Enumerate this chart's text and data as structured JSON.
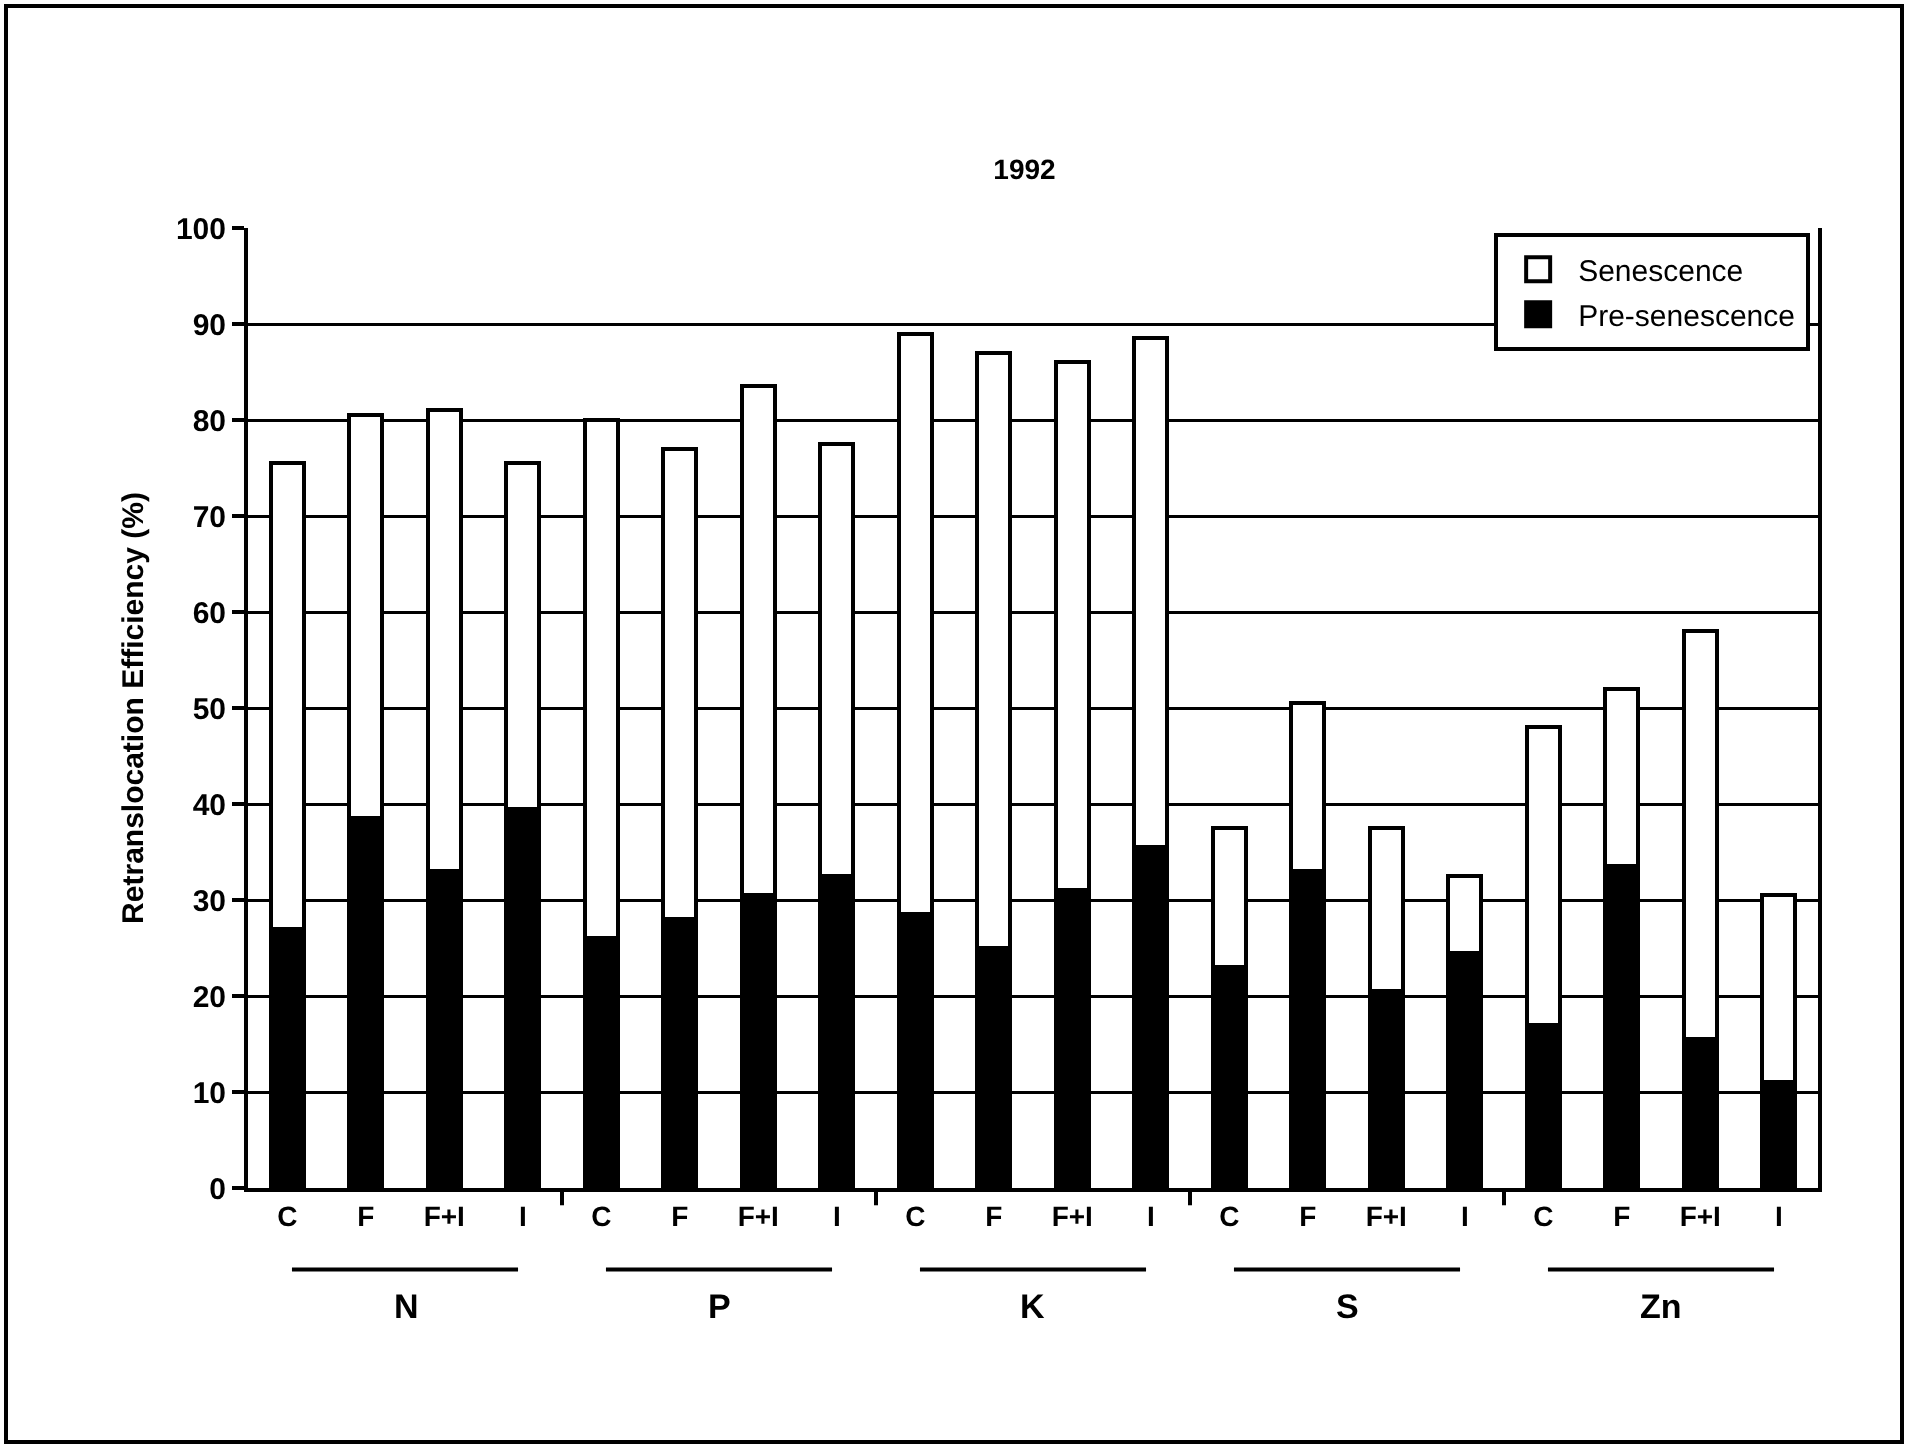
{
  "chart_data": {
    "type": "bar",
    "title": "1992",
    "ylabel": "Retranslocation Efficiency (%)",
    "categories": [
      "C",
      "F",
      "F+I",
      "I",
      "C",
      "F",
      "F+I",
      "I",
      "C",
      "F",
      "F+I",
      "I",
      "C",
      "F",
      "F+I",
      "I",
      "C",
      "F",
      "F+I",
      "I"
    ],
    "stacked": true,
    "series": [
      {
        "name": "Pre-senescence",
        "color": "#000000",
        "values": [
          27,
          38.5,
          33,
          39.5,
          26,
          28,
          30.5,
          32.5,
          28.5,
          25,
          31,
          35.5,
          23,
          33,
          20.5,
          24.5,
          17,
          33.5,
          15.5,
          11
        ]
      },
      {
        "name": "Senescence",
        "color": "#ffffff",
        "values": [
          48.5,
          42,
          48,
          36,
          54,
          49,
          53,
          45,
          60.5,
          62,
          55,
          53,
          14.5,
          17.5,
          17,
          8,
          31,
          18.5,
          42.5,
          19.5
        ]
      }
    ],
    "annotations": [
      "N",
      "P",
      "K",
      "S",
      "Zn"
    ],
    "ylim": [
      0,
      100
    ],
    "yticks": [
      0,
      10,
      20,
      30,
      40,
      50,
      60,
      70,
      80,
      90,
      100
    ],
    "grid": "y",
    "legend": "top right"
  }
}
